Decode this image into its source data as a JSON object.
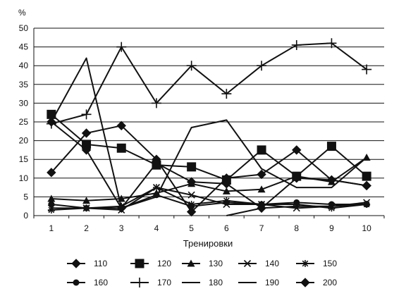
{
  "chart_data": {
    "type": "line",
    "unit_label": "%",
    "xlabel": "Тренировки",
    "ylabel": "",
    "categories": [
      "1",
      "2",
      "3",
      "4",
      "5",
      "6",
      "7",
      "8",
      "9",
      "10"
    ],
    "y_ticks": [
      "0",
      "5",
      "10",
      "15",
      "20",
      "25",
      "30",
      "35",
      "40",
      "45",
      "50"
    ],
    "ylim": [
      0,
      50
    ],
    "grid": "horizontal",
    "legend_position": "bottom",
    "series": [
      {
        "name": "110",
        "marker": "diamond",
        "values": [
          11.5,
          22,
          24,
          15,
          1,
          10,
          11,
          17.5,
          9.5,
          8
        ]
      },
      {
        "name": "120",
        "marker": "square",
        "values": [
          27,
          19,
          18,
          13.5,
          13,
          9.5,
          17.5,
          10.5,
          18.5,
          10.5
        ]
      },
      {
        "name": "130",
        "marker": "triangle",
        "values": [
          4.5,
          4,
          4.5,
          6,
          8.5,
          6.5,
          7,
          10.5,
          9,
          15.5
        ]
      },
      {
        "name": "140",
        "marker": "x",
        "values": [
          2,
          2,
          1.5,
          7.5,
          5.5,
          3,
          3,
          2,
          2.5,
          3.5
        ]
      },
      {
        "name": "150",
        "marker": "star",
        "values": [
          1.5,
          2,
          2.5,
          7.5,
          3,
          4,
          3,
          3,
          2,
          3
        ]
      },
      {
        "name": "160",
        "marker": "circle",
        "values": [
          3,
          2,
          2,
          5.5,
          2.5,
          3.5,
          3,
          3.5,
          3,
          3
        ]
      },
      {
        "name": "170",
        "marker": "plus",
        "values": [
          24.5,
          27,
          45,
          30,
          40,
          32.5,
          40,
          45.5,
          46,
          39
        ]
      },
      {
        "name": "180",
        "marker": "none",
        "values": [
          25,
          42,
          2,
          5,
          23.5,
          25.5,
          12.5,
          7.5,
          7.5,
          15.5
        ]
      },
      {
        "name": "190",
        "marker": "none",
        "values": [
          null,
          null,
          null,
          null,
          null,
          0,
          2,
          2.5,
          2.5,
          3
        ]
      },
      {
        "name": "200",
        "marker": "diamond",
        "values": [
          25,
          17.5,
          2,
          14,
          9,
          8.5,
          2,
          10,
          9.5,
          8
        ]
      }
    ]
  }
}
